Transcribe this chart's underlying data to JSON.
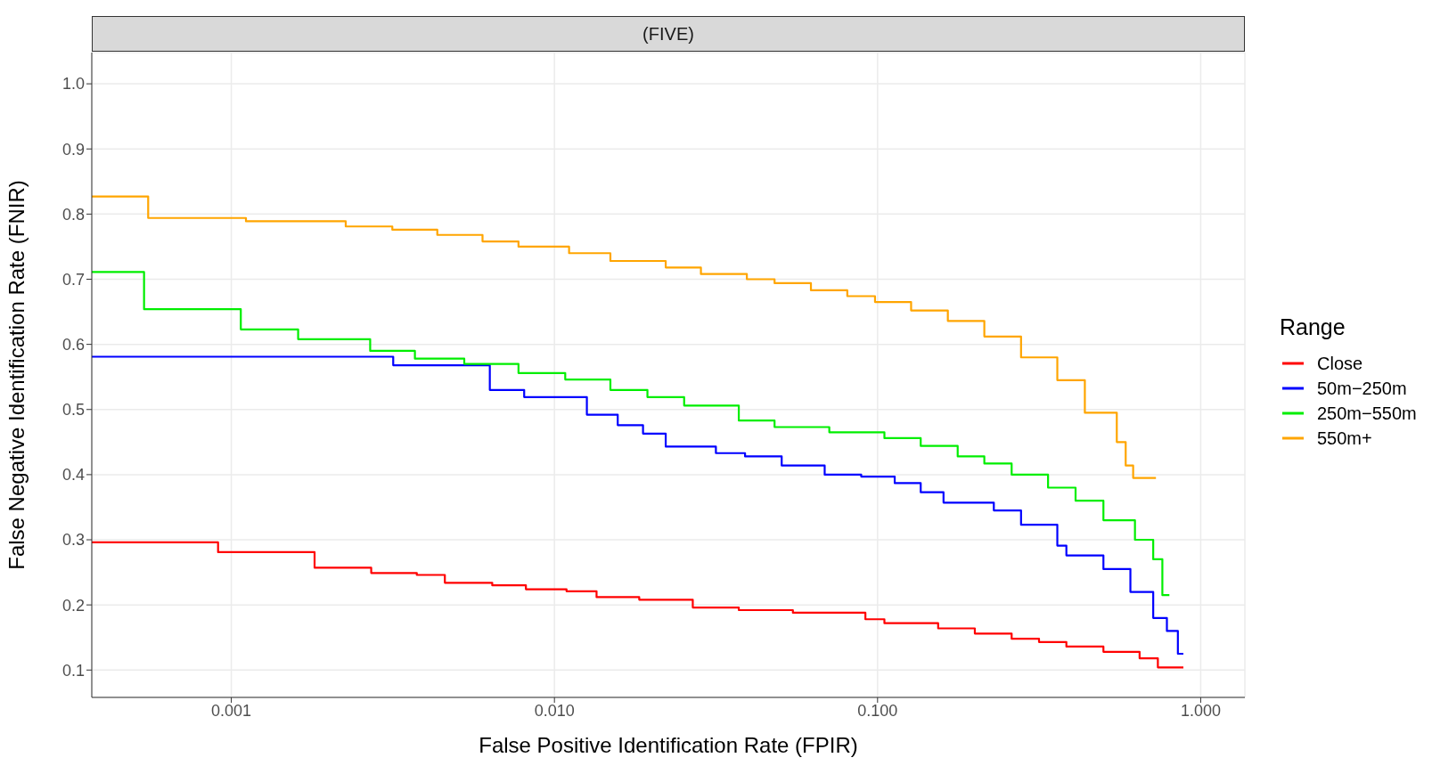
{
  "chart_data": {
    "type": "step",
    "title": "(FIVE)",
    "xlabel": "False Positive Identification Rate (FPIR)",
    "ylabel": "False Negative Identification Rate (FNIR)",
    "legend_title": "Range",
    "legend": "right",
    "grid": true,
    "log": "x",
    "marker": "none",
    "line_style": "solid",
    "xlim": [
      0.00037,
      1.37
    ],
    "xticks": [
      {
        "value": 0.001,
        "label": "0.001"
      },
      {
        "value": 0.01,
        "label": "0.010"
      },
      {
        "value": 0.1,
        "label": "0.100"
      },
      {
        "value": 1,
        "label": "1.000"
      }
    ],
    "ylim": [
      0.058,
      1.048
    ],
    "yticks": [
      {
        "value": 0.1,
        "label": "0.1"
      },
      {
        "value": 0.2,
        "label": "0.2"
      },
      {
        "value": 0.3,
        "label": "0.3"
      },
      {
        "value": 0.4,
        "label": "0.4"
      },
      {
        "value": 0.5,
        "label": "0.5"
      },
      {
        "value": 0.6,
        "label": "0.6"
      },
      {
        "value": 0.7,
        "label": "0.7"
      },
      {
        "value": 0.8,
        "label": "0.8"
      },
      {
        "value": 0.9,
        "label": "0.9"
      },
      {
        "value": 1,
        "label": "1.0"
      }
    ],
    "series": [
      {
        "name": "Close",
        "color": "#ff0000",
        "x": [
          0.00037,
          0.00091,
          0.00181,
          0.00271,
          0.00375,
          0.00458,
          0.00642,
          0.00816,
          0.0109,
          0.0135,
          0.0183,
          0.0268,
          0.0372,
          0.0547,
          0.0917,
          0.105,
          0.154,
          0.2,
          0.26,
          0.316,
          0.384,
          0.5,
          0.647,
          0.737,
          0.884
        ],
        "values": [
          0.296,
          0.281,
          0.257,
          0.249,
          0.246,
          0.234,
          0.23,
          0.224,
          0.221,
          0.212,
          0.208,
          0.196,
          0.192,
          0.188,
          0.178,
          0.172,
          0.164,
          0.156,
          0.148,
          0.143,
          0.136,
          0.128,
          0.118,
          0.104,
          0.104
        ]
      },
      {
        "name": "50m−250m",
        "color": "#0000ff",
        "x": [
          0.00037,
          0.00317,
          0.00631,
          0.00806,
          0.0126,
          0.0157,
          0.0188,
          0.0221,
          0.0316,
          0.0389,
          0.0505,
          0.0686,
          0.089,
          0.113,
          0.136,
          0.16,
          0.229,
          0.278,
          0.36,
          0.384,
          0.5,
          0.606,
          0.713,
          0.786,
          0.85,
          0.884
        ],
        "values": [
          0.581,
          0.568,
          0.53,
          0.519,
          0.492,
          0.476,
          0.463,
          0.443,
          0.433,
          0.428,
          0.414,
          0.4,
          0.397,
          0.387,
          0.373,
          0.357,
          0.345,
          0.323,
          0.291,
          0.276,
          0.255,
          0.22,
          0.18,
          0.16,
          0.125,
          0.125
        ]
      },
      {
        "name": "250m−550m",
        "color": "#00ee00",
        "x": [
          0.00037,
          0.000537,
          0.00107,
          0.00161,
          0.00269,
          0.0037,
          0.00526,
          0.00774,
          0.0108,
          0.0149,
          0.0194,
          0.0252,
          0.0372,
          0.048,
          0.0709,
          0.105,
          0.136,
          0.177,
          0.214,
          0.26,
          0.337,
          0.41,
          0.5,
          0.626,
          0.713,
          0.761,
          0.8
        ],
        "values": [
          0.711,
          0.654,
          0.623,
          0.608,
          0.59,
          0.578,
          0.57,
          0.556,
          0.546,
          0.53,
          0.519,
          0.506,
          0.483,
          0.473,
          0.465,
          0.456,
          0.444,
          0.428,
          0.417,
          0.4,
          0.38,
          0.36,
          0.33,
          0.3,
          0.27,
          0.215,
          0.215
        ]
      },
      {
        "name": "550m+",
        "color": "#ffa500",
        "x": [
          0.00037,
          0.000553,
          0.00111,
          0.00226,
          0.00315,
          0.00434,
          0.00599,
          0.00774,
          0.0111,
          0.0149,
          0.0221,
          0.0284,
          0.0394,
          0.048,
          0.0622,
          0.0806,
          0.0982,
          0.127,
          0.165,
          0.214,
          0.278,
          0.36,
          0.438,
          0.55,
          0.586,
          0.618,
          0.727
        ],
        "values": [
          0.827,
          0.794,
          0.789,
          0.781,
          0.776,
          0.768,
          0.758,
          0.75,
          0.74,
          0.728,
          0.718,
          0.708,
          0.7,
          0.694,
          0.683,
          0.674,
          0.665,
          0.652,
          0.636,
          0.612,
          0.58,
          0.545,
          0.495,
          0.45,
          0.414,
          0.395,
          0.395
        ]
      }
    ]
  }
}
